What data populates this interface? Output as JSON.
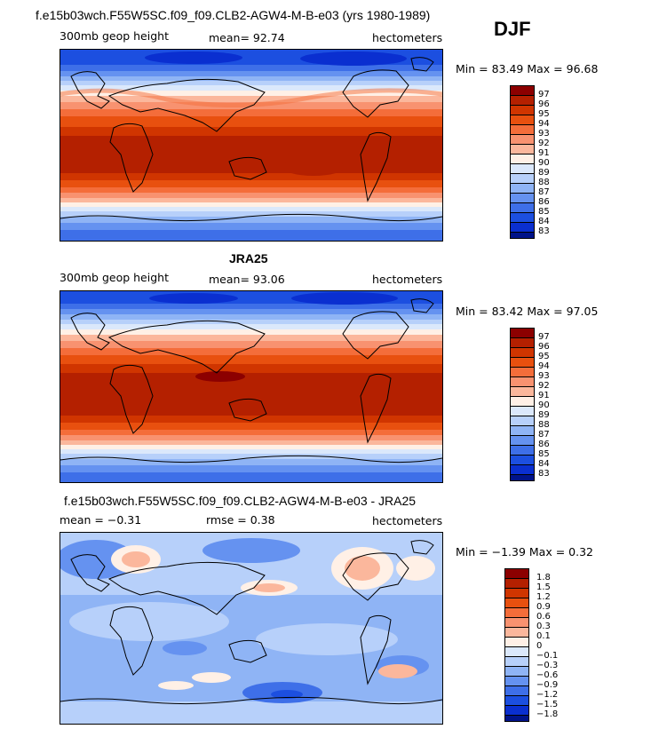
{
  "season": "DJF",
  "panels": [
    {
      "title": "f.e15b03wch.F55W5SC.f09_f09.CLB2-AGW4-M-B-e03 (yrs 1980-1989)",
      "left_label": "300mb geop height",
      "center_label": "mean=  92.74",
      "right_label": "hectometers",
      "min_max": "Min =  83.49 Max =  96.68",
      "colorbar_labels": [
        "97",
        "96",
        "95",
        "94",
        "93",
        "92",
        "91",
        "90",
        "89",
        "88",
        "87",
        "86",
        "85",
        "84",
        "83"
      ],
      "colors": [
        "#8c0000",
        "#b42000",
        "#d03500",
        "#e8500f",
        "#f46d3a",
        "#f89270",
        "#fbb79c",
        "#fff0e6",
        "#dbe8fb",
        "#b7d0fa",
        "#8fb4f5",
        "#6592f0",
        "#3e6fe8",
        "#1c4fe0",
        "#0a2fd0",
        "#00138a"
      ]
    },
    {
      "title": "JRA25",
      "left_label": "300mb geop height",
      "center_label": "mean=  93.06",
      "right_label": "hectometers",
      "min_max": "Min =  83.42 Max =  97.05",
      "colorbar_labels": [
        "97",
        "96",
        "95",
        "94",
        "93",
        "92",
        "91",
        "90",
        "89",
        "88",
        "87",
        "86",
        "85",
        "84",
        "83"
      ],
      "colors": [
        "#8c0000",
        "#b42000",
        "#d03500",
        "#e8500f",
        "#f46d3a",
        "#f89270",
        "#fbb79c",
        "#fff0e6",
        "#dbe8fb",
        "#b7d0fa",
        "#8fb4f5",
        "#6592f0",
        "#3e6fe8",
        "#1c4fe0",
        "#0a2fd0",
        "#00138a"
      ]
    },
    {
      "title": "f.e15b03wch.F55W5SC.f09_f09.CLB2-AGW4-M-B-e03 - JRA25",
      "left_label": "mean =  −0.31",
      "center_label": "rmse =   0.38",
      "right_label": "hectometers",
      "min_max": "Min =  −1.39 Max =   0.32",
      "colorbar_labels": [
        "1.8",
        "1.5",
        "1.2",
        "0.9",
        "0.6",
        "0.3",
        "0.1",
        "0",
        "−0.1",
        "−0.3",
        "−0.6",
        "−0.9",
        "−1.2",
        "−1.5",
        "−1.8"
      ],
      "colors": [
        "#8c0000",
        "#b42000",
        "#d03500",
        "#e8500f",
        "#f46d3a",
        "#f89270",
        "#fbb79c",
        "#fff0e6",
        "#dbe8fb",
        "#b7d0fa",
        "#8fb4f5",
        "#6592f0",
        "#3e6fe8",
        "#1c4fe0",
        "#0a2fd0",
        "#00138a"
      ]
    }
  ]
}
